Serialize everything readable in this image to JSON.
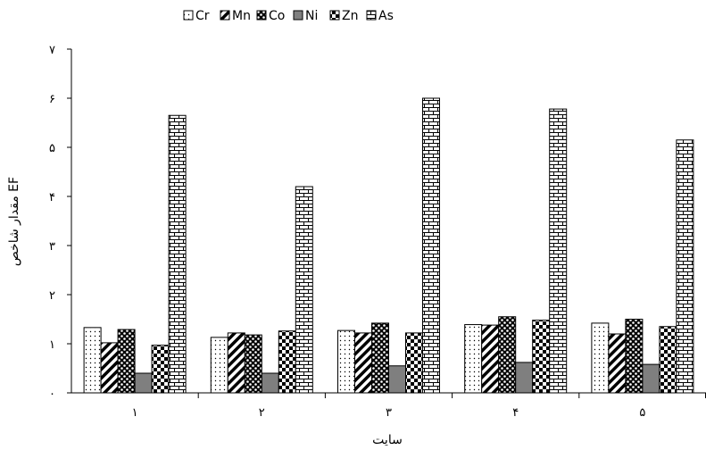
{
  "chart_data": {
    "type": "bar",
    "title": "",
    "xlabel": "سایت",
    "ylabel": "مقدار شاخص EF",
    "categories": [
      "۱",
      "۲",
      "۳",
      "۴",
      "۵"
    ],
    "ylim": [
      0,
      7
    ],
    "yticks": [
      0,
      1,
      2,
      3,
      4,
      5,
      6,
      7
    ],
    "ytick_labels": [
      "۰",
      "۱",
      "۲",
      "۳",
      "۴",
      "۵",
      "۶",
      "۷"
    ],
    "grid": false,
    "legend_position": "top",
    "series": [
      {
        "name": "Cr",
        "pattern": "dots",
        "values": [
          1.33,
          1.13,
          1.27,
          1.39,
          1.42
        ]
      },
      {
        "name": "Mn",
        "pattern": "diagonal",
        "values": [
          1.02,
          1.22,
          1.22,
          1.38,
          1.2
        ]
      },
      {
        "name": "Co",
        "pattern": "speckle",
        "values": [
          1.29,
          1.18,
          1.42,
          1.55,
          1.5
        ]
      },
      {
        "name": "Ni",
        "pattern": "solid-gray",
        "values": [
          0.4,
          0.4,
          0.55,
          0.62,
          0.58
        ]
      },
      {
        "name": "Zn",
        "pattern": "checker",
        "values": [
          0.97,
          1.26,
          1.22,
          1.48,
          1.35
        ]
      },
      {
        "name": "As",
        "pattern": "brick",
        "values": [
          5.65,
          4.2,
          6.0,
          5.78,
          5.15
        ]
      }
    ]
  }
}
